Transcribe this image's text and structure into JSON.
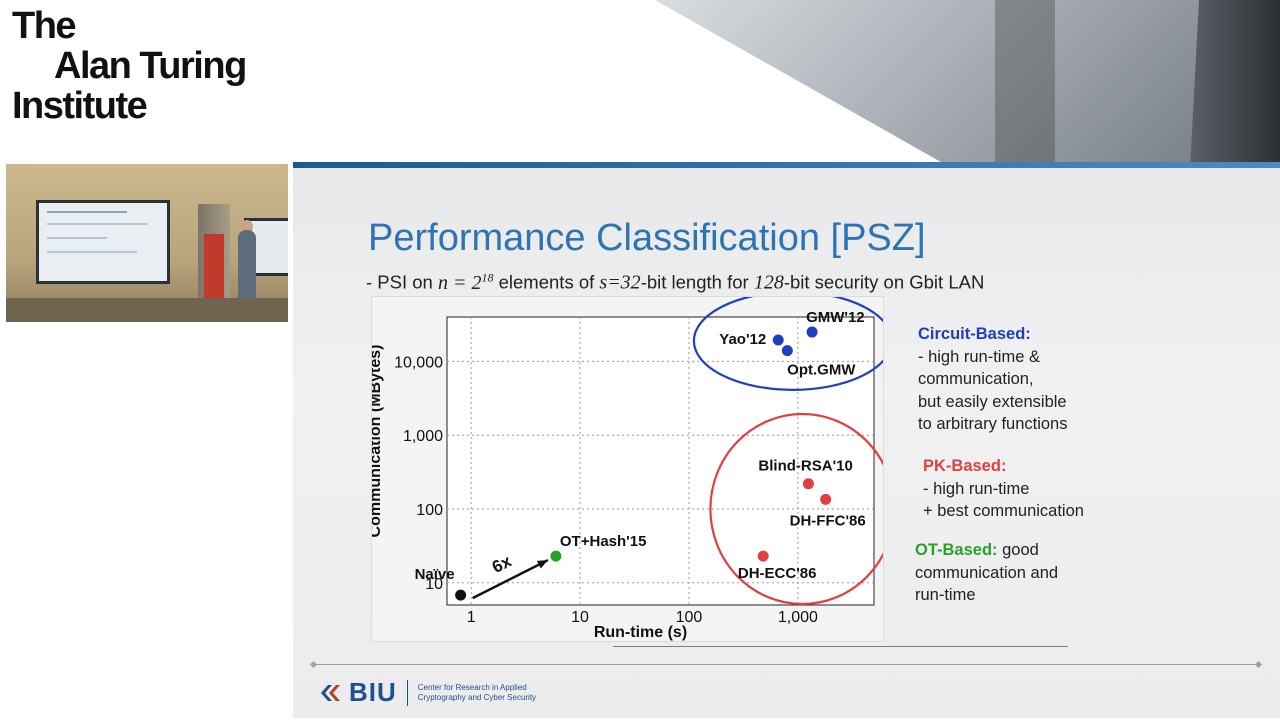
{
  "logo": {
    "line1": "The",
    "line2": "Alan Turing",
    "line3": "Institute"
  },
  "slide": {
    "title": "Performance Classification [PSZ]",
    "subtitle": {
      "prefix": "- PSI on ",
      "n_expr": "n = 2",
      "n_exp": "18",
      "mid1": " elements of ",
      "s_expr": "s=32",
      "mid2": "-bit length for ",
      "sec": "128",
      "suffix": "-bit security on Gbit LAN"
    },
    "categories": {
      "circuit": {
        "heading": "Circuit-Based:",
        "lines": [
          "- high run-time &",
          "communication,",
          "but easily extensible",
          "to arbitrary functions"
        ]
      },
      "pk": {
        "heading": "PK-Based:",
        "lines": [
          "- high run-time",
          "+ best communication"
        ]
      },
      "ot": {
        "heading": "OT-Based:",
        "heading_tail": " good",
        "lines": [
          "communication and",
          "run-time"
        ]
      }
    },
    "footer": {
      "org": "BIU",
      "sub1": "Center for Research in Applied",
      "sub2": "Cryptography and Cyber Security"
    }
  },
  "colors": {
    "title_blue": "#2e74b5",
    "circuit_blue": "#1f3fbf",
    "pk_red": "#e04040",
    "ot_green": "#2aa02a"
  },
  "chart_data": {
    "type": "scatter",
    "xlabel": "Run-time (s)",
    "ylabel": "Communication (MBytes)",
    "x_scale": "log",
    "y_scale": "log",
    "xlim": [
      0.6,
      5000
    ],
    "ylim": [
      5,
      40000
    ],
    "x_ticks": [
      1,
      10,
      100,
      1000
    ],
    "x_tick_labels": [
      "1",
      "10",
      "100",
      "1,000"
    ],
    "y_ticks": [
      10,
      100,
      1000,
      10000
    ],
    "y_tick_labels": [
      "10",
      "100",
      "1,000",
      "10,000"
    ],
    "grid": true,
    "points": [
      {
        "label": "Naïve",
        "x": 0.8,
        "y": 6.8,
        "group": "naive",
        "color": "#111111"
      },
      {
        "label": "OT+Hash'15",
        "x": 6,
        "y": 23,
        "group": "ot",
        "color": "#2aa02a"
      },
      {
        "label": "Yao'12",
        "x": 660,
        "y": 19500,
        "group": "circuit",
        "color": "#1f3fbf"
      },
      {
        "label": "Opt.GMW",
        "x": 800,
        "y": 14000,
        "group": "circuit",
        "color": "#1f3fbf"
      },
      {
        "label": "GMW'12",
        "x": 1350,
        "y": 25000,
        "group": "circuit",
        "color": "#1f3fbf"
      },
      {
        "label": "Blind-RSA'10",
        "x": 1250,
        "y": 220,
        "group": "pk",
        "color": "#e04040"
      },
      {
        "label": "DH-FFC'86",
        "x": 1800,
        "y": 135,
        "group": "pk",
        "color": "#e04040"
      },
      {
        "label": "DH-ECC'86",
        "x": 480,
        "y": 23,
        "group": "pk",
        "color": "#e04040"
      }
    ],
    "annotation": {
      "text": "6x",
      "from": "Naïve",
      "to": "OT+Hash'15"
    }
  }
}
